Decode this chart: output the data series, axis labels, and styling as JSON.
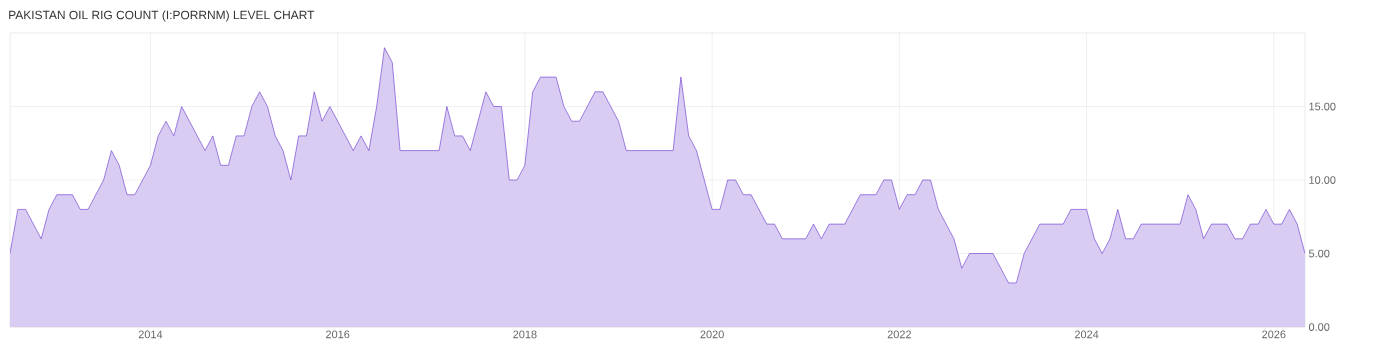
{
  "chart_data": {
    "type": "area",
    "title": "PAKISTAN OIL RIG COUNT (I:PORRNM) LEVEL CHART",
    "x": [
      "2012-07",
      "2012-08",
      "2012-09",
      "2012-11",
      "2012-12",
      "2013-01",
      "2013-03",
      "2013-04",
      "2013-05",
      "2013-07",
      "2013-08",
      "2013-09",
      "2013-10",
      "2013-11",
      "2014-01",
      "2014-02",
      "2014-03",
      "2014-04",
      "2014-05",
      "2014-08",
      "2014-09",
      "2014-10",
      "2014-11",
      "2014-12",
      "2015-01",
      "2015-02",
      "2015-03",
      "2015-04",
      "2015-05",
      "2015-06",
      "2015-07",
      "2015-08",
      "2015-09",
      "2015-10",
      "2015-11",
      "2015-12",
      "2016-03",
      "2016-04",
      "2016-05",
      "2016-06",
      "2016-07",
      "2016-08",
      "2016-09",
      "2017-02",
      "2017-03",
      "2017-04",
      "2017-05",
      "2017-06",
      "2017-08",
      "2017-09",
      "2017-10",
      "2017-11",
      "2017-12",
      "2018-01",
      "2018-02",
      "2018-03",
      "2018-05",
      "2018-06",
      "2018-07",
      "2018-08",
      "2018-10",
      "2018-11",
      "2019-01",
      "2019-02",
      "2019-08",
      "2019-09",
      "2019-10",
      "2019-11",
      "2020-01",
      "2020-02",
      "2020-03",
      "2020-04",
      "2020-05",
      "2020-06",
      "2020-08",
      "2020-09",
      "2020-10",
      "2021-01",
      "2021-02",
      "2021-03",
      "2021-04",
      "2021-06",
      "2021-08",
      "2021-10",
      "2021-11",
      "2021-12",
      "2022-01",
      "2022-02",
      "2022-03",
      "2022-04",
      "2022-05",
      "2022-06",
      "2022-08",
      "2022-09",
      "2022-10",
      "2023-01",
      "2023-03",
      "2023-04",
      "2023-05",
      "2023-07",
      "2023-10",
      "2023-11",
      "2024-01",
      "2024-02",
      "2024-03",
      "2024-04",
      "2024-05",
      "2024-06",
      "2024-07",
      "2024-08",
      "2025-01",
      "2025-02",
      "2025-03",
      "2025-04",
      "2025-05",
      "2025-07",
      "2025-08",
      "2025-09",
      "2025-10",
      "2025-11",
      "2025-12",
      "2026-01",
      "2026-02",
      "2026-03",
      "2026-04",
      "2026-05"
    ],
    "series": [
      {
        "color": "#6633cc",
        "values": [
          5,
          8,
          8,
          6,
          8,
          9,
          9,
          8,
          8,
          10,
          12,
          11,
          9,
          9,
          11,
          13,
          14,
          13,
          15,
          12,
          13,
          11,
          11,
          13,
          13,
          15,
          16,
          15,
          13,
          12,
          10,
          13,
          13,
          16,
          14,
          15,
          12,
          13,
          12,
          15,
          19,
          18,
          12,
          12,
          15,
          13,
          13,
          12,
          16,
          15,
          15,
          10,
          10,
          11,
          16,
          17,
          17,
          15,
          14,
          14,
          16,
          16,
          14,
          12,
          12,
          17,
          13,
          12,
          8,
          8,
          10,
          10,
          9,
          9,
          7,
          7,
          6,
          6,
          7,
          6,
          7,
          7,
          9,
          9,
          10,
          10,
          8,
          9,
          9,
          10,
          10,
          8,
          6,
          4,
          5,
          5,
          3,
          3,
          5,
          7,
          7,
          8,
          8,
          6,
          5,
          6,
          8,
          6,
          6,
          7,
          7,
          9,
          8,
          6,
          7,
          7,
          6,
          6,
          7,
          7,
          8,
          7,
          7,
          8,
          7,
          5
        ]
      }
    ],
    "xlim": [
      "2012-07",
      "2026-05"
    ],
    "xticks": [
      "2014",
      "2016",
      "2018",
      "2020",
      "2022",
      "2024",
      "2026"
    ],
    "ylim": [
      0,
      20
    ],
    "yticks": [
      {
        "value": 0,
        "label": "0.00"
      },
      {
        "value": 5,
        "label": "5.00"
      },
      {
        "value": 10,
        "label": "10.00"
      },
      {
        "value": 15,
        "label": "15.00"
      }
    ],
    "grid": true,
    "marker": "none",
    "line_style": "solid"
  }
}
